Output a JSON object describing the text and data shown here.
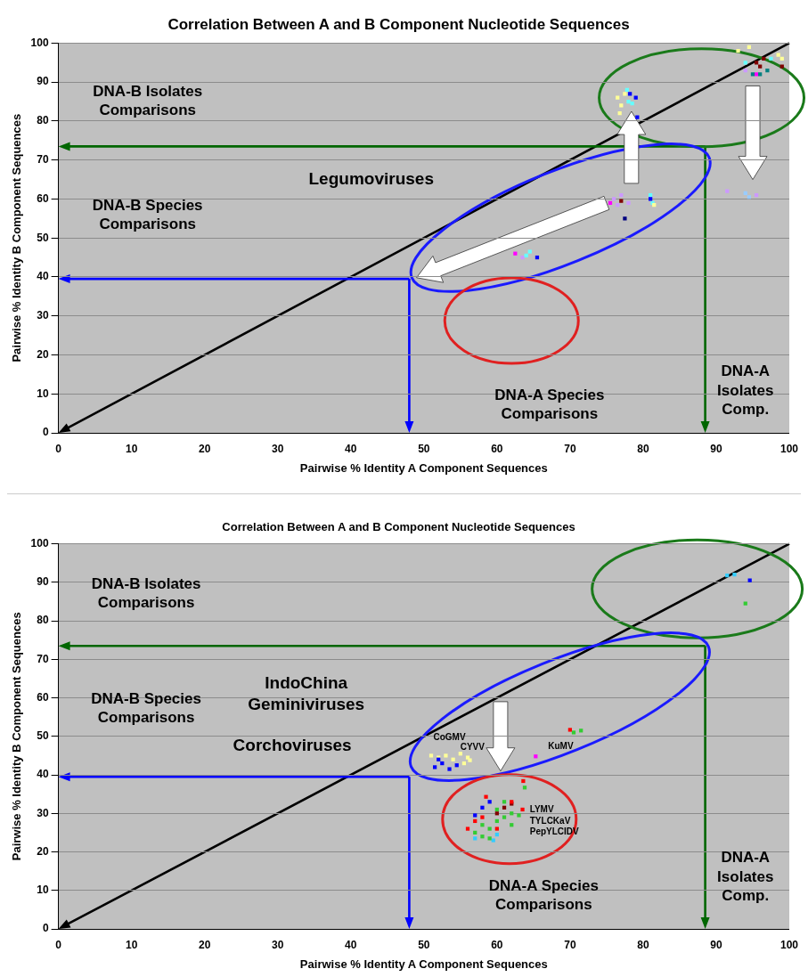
{
  "chart_data": [
    {
      "type": "scatter",
      "title": "Correlation Between A and B Component Nucleotide Sequences",
      "xlabel": "Pairwise % Identity A Component Sequences",
      "ylabel": "Pairwise % Identity B Component Sequences",
      "xlim": [
        0,
        100
      ],
      "ylim": [
        0,
        100
      ],
      "xticks": [
        0,
        10,
        20,
        30,
        40,
        50,
        60,
        70,
        80,
        90,
        100
      ],
      "yticks": [
        0,
        10,
        20,
        30,
        40,
        50,
        60,
        70,
        80,
        90,
        100
      ],
      "grid": "y",
      "marker": "square",
      "series": [
        {
          "color": "#ffff99",
          "x": [
            76.5,
            77,
            77.5,
            76.8,
            93,
            94.5,
            98.5,
            99,
            81.5
          ],
          "values": [
            86,
            84,
            87,
            82,
            98,
            99,
            97,
            96,
            58.5
          ]
        },
        {
          "color": "#0000ff",
          "x": [
            78.2,
            79,
            79.2,
            81,
            65.5
          ],
          "values": [
            87,
            86,
            81,
            60,
            45
          ]
        },
        {
          "color": "#66ffff",
          "x": [
            78,
            78.5,
            77.8,
            94,
            97.5,
            81,
            81.3,
            64,
            64.5
          ],
          "values": [
            85,
            84.5,
            88,
            95,
            96,
            61,
            59,
            45.5,
            46.5
          ]
        },
        {
          "color": "#800000",
          "x": [
            95.5,
            96,
            96.5,
            99,
            77
          ],
          "values": [
            95,
            94,
            96,
            94,
            59.5
          ]
        },
        {
          "color": "#008080",
          "x": [
            96,
            97,
            95
          ],
          "values": [
            92,
            93,
            92
          ]
        },
        {
          "color": "#ff00ff",
          "x": [
            95.5,
            75.5,
            62.5
          ],
          "values": [
            92,
            59,
            46
          ]
        },
        {
          "color": "#cc99ff",
          "x": [
            94,
            76,
            76.5,
            77,
            78,
            91.5,
            95.5,
            63.5
          ],
          "values": [
            93,
            60,
            58.5,
            61,
            59,
            62,
            61,
            45
          ]
        },
        {
          "color": "#99ccff",
          "x": [
            94,
            94.5
          ],
          "values": [
            61.5,
            60.5
          ]
        },
        {
          "color": "#000080",
          "x": [
            77.5
          ],
          "values": [
            55
          ]
        }
      ],
      "annotations": [
        "DNA-B Isolates\nComparisons",
        "DNA-B Species\nComparisons",
        "Legumoviruses",
        "DNA-A Species\nComparisons",
        "DNA-A\nIsolates\nComp."
      ]
    },
    {
      "type": "scatter",
      "title": "Correlation Between A and B Component Nucleotide Sequences",
      "xlabel": "Pairwise % Identity A Component Sequences",
      "ylabel": "Pairwise % Identity B Component Sequences",
      "xlim": [
        0,
        100
      ],
      "ylim": [
        0,
        100
      ],
      "xticks": [
        0,
        10,
        20,
        30,
        40,
        50,
        60,
        70,
        80,
        90,
        100
      ],
      "yticks": [
        0,
        10,
        20,
        30,
        40,
        50,
        60,
        70,
        80,
        90,
        100
      ],
      "grid": "y",
      "marker": "square",
      "series": [
        {
          "color": "#0000ff",
          "x": [
            51.5,
            52.5,
            53.5,
            54.5,
            52,
            58,
            59,
            57,
            94.6
          ],
          "values": [
            42,
            43,
            41.5,
            42.5,
            44,
            31.5,
            33,
            29.5,
            90.5
          ]
        },
        {
          "color": "#ffff99",
          "x": [
            51,
            52,
            53,
            54,
            55,
            55.5,
            56,
            56.3
          ],
          "values": [
            45,
            44.5,
            45,
            44,
            45.5,
            43,
            44.5,
            43.8
          ]
        },
        {
          "color": "#ff00ff",
          "x": [
            65.3
          ],
          "values": [
            44.8
          ]
        },
        {
          "color": "#ff0000",
          "x": [
            70,
            63.6,
            56,
            57,
            58,
            60,
            62,
            63.5,
            58.5
          ],
          "values": [
            51.7,
            38.4,
            26,
            28,
            29,
            26,
            33,
            31,
            34.3
          ]
        },
        {
          "color": "#33cc33",
          "x": [
            70.5,
            71.5,
            63.8,
            57,
            58,
            59,
            60,
            61,
            62,
            60,
            61,
            58,
            59,
            62,
            63,
            94
          ],
          "values": [
            51,
            51.5,
            36.7,
            25,
            27,
            26,
            28,
            29,
            30,
            31,
            33,
            24,
            23.5,
            27,
            29.5,
            84.5
          ]
        },
        {
          "color": "#33ccff",
          "x": [
            57,
            59.5,
            60,
            91.5,
            92.5
          ],
          "values": [
            23.5,
            23,
            24.5,
            91.8,
            92
          ]
        },
        {
          "color": "#800000",
          "x": [
            60,
            61,
            62
          ],
          "values": [
            30,
            31.5,
            32.5
          ]
        }
      ],
      "annotations": [
        "DNA-B Isolates\nComparisons",
        "DNA-B Species\nComparisons",
        "IndoChina\nGeminiviruses",
        "Corchoviruses",
        "CoGMV",
        "CYVV",
        "KuMV",
        "LYMV\nTYLCKaV\nPepYLCIDV",
        "DNA-A Species\nComparisons",
        "DNA-A\nIsolates\nComp."
      ]
    }
  ]
}
